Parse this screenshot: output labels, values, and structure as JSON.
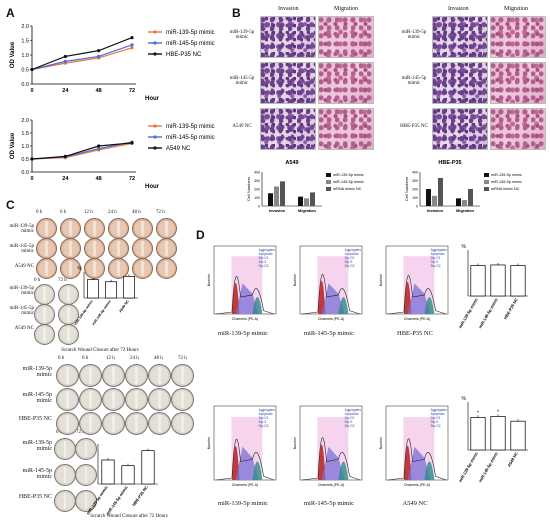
{
  "panels": {
    "a": "A",
    "b": "B",
    "c": "C",
    "d": "D"
  },
  "colors": {
    "orange": "#e8743b",
    "blue": "#4a6fd8",
    "black": "#111111",
    "red": "#cc2222"
  },
  "chart_data": [
    {
      "type": "line",
      "ylabel": "OD Value",
      "xlabel": "Hour",
      "x": [
        0,
        24,
        48,
        72
      ],
      "ylim": [
        0,
        2.0
      ],
      "ytick_labels": [
        "0.0",
        "0.5",
        "1.0",
        "1.5",
        "2.0"
      ],
      "xtick_labels": [
        "0",
        "24",
        "48",
        "72"
      ],
      "legend_position": "right",
      "series": [
        {
          "name": "miR-139-5p mimic",
          "color": "#e8743b",
          "values": [
            0.5,
            0.72,
            0.9,
            1.25
          ]
        },
        {
          "name": "miR-145-5p mimic",
          "color": "#4a6fd8",
          "values": [
            0.5,
            0.78,
            0.95,
            1.35
          ]
        },
        {
          "name": "HBE-P35 NC",
          "color": "#111111",
          "values": [
            0.5,
            0.95,
            1.15,
            1.6
          ]
        }
      ]
    },
    {
      "type": "line",
      "ylabel": "OD Value",
      "xlabel": "Hour",
      "x": [
        0,
        24,
        48,
        72
      ],
      "ylim": [
        0,
        2.0
      ],
      "ytick_labels": [
        "0.0",
        "0.5",
        "1.0",
        "1.5",
        "2.0"
      ],
      "xtick_labels": [
        "0",
        "24",
        "48",
        "72"
      ],
      "legend_position": "right",
      "series": [
        {
          "name": "miR-139-5p mimic",
          "color": "#e8743b",
          "values": [
            0.5,
            0.55,
            0.85,
            1.1
          ]
        },
        {
          "name": "miR-145-5p mimic",
          "color": "#4a6fd8",
          "values": [
            0.5,
            0.58,
            0.9,
            1.15
          ]
        },
        {
          "name": "A549 NC",
          "color": "#111111",
          "values": [
            0.5,
            0.6,
            1.0,
            1.12
          ]
        }
      ]
    },
    {
      "type": "bar",
      "title": "A549",
      "ylabel": "Cell Numbers",
      "categories": [
        "Invasion",
        "Migration"
      ],
      "ylim": [
        0,
        400
      ],
      "ytick_labels": [
        "0",
        "100",
        "200",
        "300",
        "400"
      ],
      "series": [
        {
          "name": "miR-139-5p mimic",
          "color": "#111111",
          "values": [
            150,
            110
          ]
        },
        {
          "name": "miR-145-5p mimic",
          "color": "#888888",
          "values": [
            230,
            90
          ]
        },
        {
          "name": "mRNA mimic NC",
          "color": "#555555",
          "values": [
            290,
            160
          ]
        }
      ]
    },
    {
      "type": "bar",
      "title": "HBE-P35",
      "ylabel": "Cell Numbers",
      "categories": [
        "Invasion",
        "Migration"
      ],
      "ylim": [
        0,
        400
      ],
      "ytick_labels": [
        "0",
        "100",
        "200",
        "300",
        "400"
      ],
      "series": [
        {
          "name": "miR-139-5p mimic",
          "color": "#111111",
          "values": [
            200,
            90
          ]
        },
        {
          "name": "miR-145-5p mimic",
          "color": "#888888",
          "values": [
            120,
            70
          ]
        },
        {
          "name": "mRNA mimic NC",
          "color": "#555555",
          "values": [
            330,
            200
          ]
        }
      ]
    },
    {
      "type": "bar",
      "ylabel": "%",
      "categories": [
        "miR-139-5p mimic",
        "miR-145-5p mimic",
        "A549 NC"
      ],
      "values": [
        85,
        75,
        100
      ],
      "ylim": [
        0,
        120
      ]
    },
    {
      "type": "bar",
      "categories": [
        "miR-139-5p mimic",
        "miR-145-5p mimic",
        "HBE-P35 NC"
      ],
      "values": [
        72,
        55,
        100
      ],
      "ylim": [
        0,
        120
      ]
    },
    {
      "type": "bar",
      "ylabel": "%",
      "categories": [
        "miR-139-5p mimic",
        "miR-145-5p mimic",
        "HBE-P35 NC"
      ],
      "values": [
        53,
        54,
        53
      ],
      "ylim": [
        0,
        80
      ]
    },
    {
      "type": "bar",
      "ylabel": "%",
      "categories": [
        "miR-139-5p mimic",
        "miR-145-5p mimic",
        "A549 NC"
      ],
      "values": [
        34,
        35,
        30
      ],
      "ylim": [
        0,
        50
      ]
    }
  ],
  "panel_b": {
    "col_invasion": "Invasion",
    "col_migration": "Migration",
    "left_rows": [
      "miR-139-5p mimic",
      "miR-145-5p mimic",
      "A549 NC"
    ],
    "right_rows": [
      "miR-139-5p mimic",
      "miR-145-5p mimic",
      "HBE-P35 NC"
    ]
  },
  "panel_c": {
    "times": [
      "0 h",
      "6 h",
      "12 h",
      "24 h",
      "48 h",
      "72 h"
    ],
    "times_short": [
      "0 h",
      "72 h"
    ],
    "top_rows": [
      "miR-139-5p mimic",
      "miR-145-5p mimic",
      "A549 NC"
    ],
    "bottom_rows": [
      "miR-139-5p mimic",
      "miR-145-5p mimic",
      "HBE-P35 NC"
    ],
    "caption": "Scratch Wound Closure after 72 Hours"
  },
  "panel_d": {
    "xlabel": "Channels (PE-A)",
    "ylabel": "Number",
    "top_labels": [
      "miR-139-5p mimic",
      "miR-145-5p mimic",
      "HBE-P35 NC"
    ],
    "bottom_labels": [
      "miR-139-5p mimic",
      "miR-145-5p mimic",
      "A549 NC"
    ],
    "legend": [
      "Aggregates",
      "Apoptosis",
      "Dip G1",
      "Dip S",
      "Dip G2"
    ]
  }
}
